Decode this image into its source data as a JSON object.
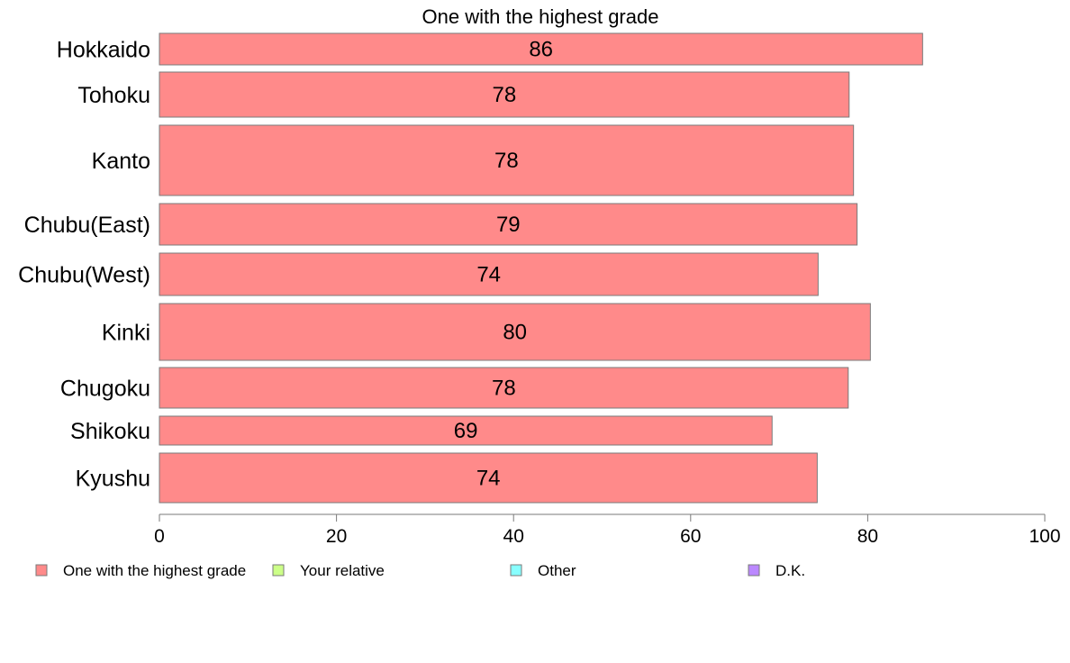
{
  "chart_data": {
    "type": "bar",
    "orientation": "horizontal",
    "title": "One with the highest grade",
    "xlabel": "",
    "ylabel": "",
    "categories": [
      "Hokkaido",
      "Tohoku",
      "Kanto",
      "Chubu(East)",
      "Chubu(West)",
      "Kinki",
      "Chugoku",
      "Shikoku",
      "Kyushu"
    ],
    "series": [
      {
        "name": "One with the highest grade",
        "color": "#ff8a8a",
        "values": [
          86.2,
          77.9,
          78.4,
          78.8,
          74.4,
          80.3,
          77.8,
          69.2,
          74.3
        ],
        "labels": [
          "86",
          "78",
          "78",
          "79",
          "74",
          "80",
          "78",
          "69",
          "74"
        ]
      }
    ],
    "xlim": [
      0,
      100
    ],
    "xticks": [
      "0",
      "20",
      "40",
      "60",
      "80",
      "100"
    ],
    "grid": false,
    "legend": {
      "position": "bottom",
      "items": [
        {
          "label": "One with the highest grade",
          "color": "#ff8a8a"
        },
        {
          "label": "Your relative",
          "color": "#ccff88"
        },
        {
          "label": "Other",
          "color": "#88ffff"
        },
        {
          "label": "D.K.",
          "color": "#bb88ff"
        }
      ]
    }
  }
}
